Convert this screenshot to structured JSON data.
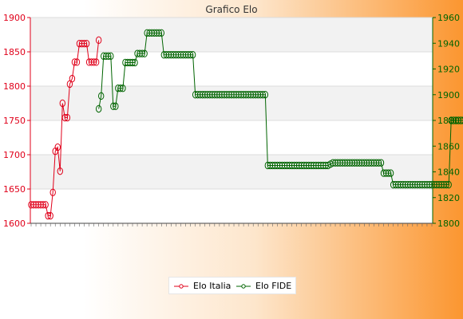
{
  "chart_data": {
    "type": "line",
    "title": "Grafico Elo",
    "y_left": {
      "min": 1600,
      "max": 1900,
      "ticks": [
        1600,
        1650,
        1700,
        1750,
        1800,
        1850,
        1900
      ],
      "color": "#e0001a"
    },
    "y_right": {
      "min": 1800,
      "max": 1960,
      "ticks": [
        1800,
        1820,
        1840,
        1860,
        1880,
        1900,
        1920,
        1940,
        1960
      ],
      "color": "#006400"
    },
    "x_count": 167,
    "grid": "horizontal bands",
    "legend_position": "bottom",
    "series": [
      {
        "name": "Elo Italia",
        "axis": "left",
        "color": "#e0001a",
        "start_index": 0,
        "values": [
          1627,
          1627,
          1627,
          1627,
          1627,
          1627,
          1627,
          1611,
          1611,
          1645,
          1705,
          1711,
          1676,
          1775,
          1754,
          1754,
          1803,
          1811,
          1835,
          1835,
          1862,
          1862,
          1862,
          1862,
          1835,
          1835,
          1835,
          1835,
          1867
        ]
      },
      {
        "name": "Elo FIDE",
        "axis": "right",
        "color": "#006400",
        "start_index": 28,
        "values": [
          1889,
          1899,
          1930,
          1930,
          1930,
          1930,
          1891,
          1891,
          1905,
          1905,
          1905,
          1925,
          1925,
          1925,
          1925,
          1925,
          1932,
          1932,
          1932,
          1932,
          1948,
          1948,
          1948,
          1948,
          1948,
          1948,
          1948,
          1931,
          1931,
          1931,
          1931,
          1931,
          1931,
          1931,
          1931,
          1931,
          1931,
          1931,
          1931,
          1931,
          1900,
          1900,
          1900,
          1900,
          1900,
          1900,
          1900,
          1900,
          1900,
          1900,
          1900,
          1900,
          1900,
          1900,
          1900,
          1900,
          1900,
          1900,
          1900,
          1900,
          1900,
          1900,
          1900,
          1900,
          1900,
          1900,
          1900,
          1900,
          1900,
          1900,
          1845,
          1845,
          1845,
          1845,
          1845,
          1845,
          1845,
          1845,
          1845,
          1845,
          1845,
          1845,
          1845,
          1845,
          1845,
          1845,
          1845,
          1845,
          1845,
          1845,
          1845,
          1845,
          1845,
          1845,
          1845,
          1845,
          1846,
          1847,
          1847,
          1847,
          1847,
          1847,
          1847,
          1847,
          1847,
          1847,
          1847,
          1847,
          1847,
          1847,
          1847,
          1847,
          1847,
          1847,
          1847,
          1847,
          1847,
          1847,
          1839,
          1839,
          1839,
          1839,
          1830,
          1830,
          1830,
          1830,
          1830,
          1830,
          1830,
          1830,
          1830,
          1830,
          1830,
          1830,
          1830,
          1830,
          1830,
          1830,
          1830,
          1830,
          1830,
          1830,
          1830,
          1830,
          1830,
          1830,
          1880,
          1880,
          1880,
          1880,
          1880,
          1880,
          1880,
          1880,
          1880,
          1880,
          1880,
          1880,
          1880,
          1880,
          1880,
          1880,
          1880,
          1880,
          1880,
          1880,
          1880,
          1880,
          1880
        ]
      }
    ]
  }
}
